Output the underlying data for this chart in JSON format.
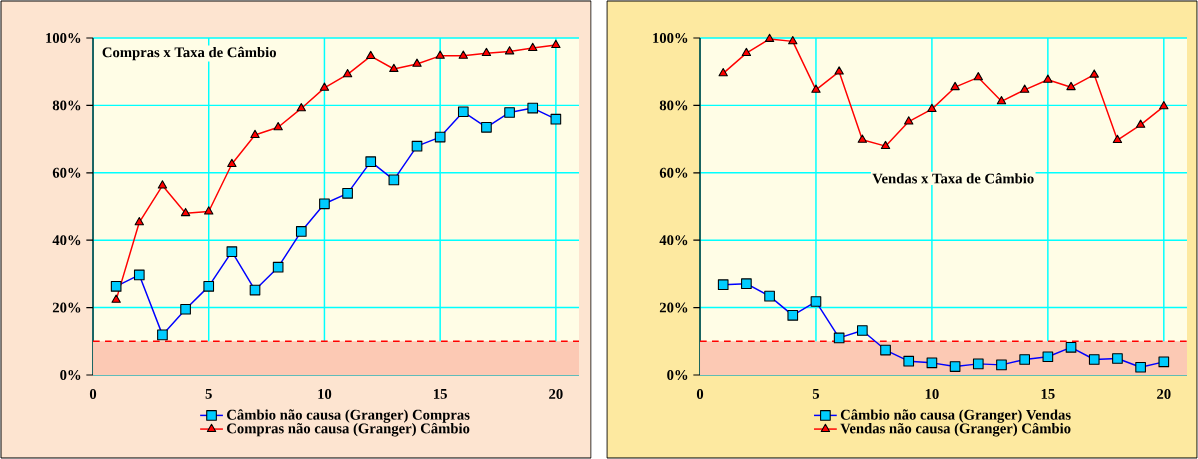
{
  "chart_data": [
    {
      "type": "line",
      "title": "Compras x Taxa de Câmbio",
      "x": [
        1,
        2,
        3,
        4,
        5,
        6,
        7,
        8,
        9,
        10,
        11,
        12,
        13,
        14,
        15,
        16,
        17,
        18,
        19,
        20
      ],
      "series": [
        {
          "name": "Câmbio não causa (Granger) Compras",
          "color": "#0000ff",
          "marker": "square",
          "values": [
            26.3,
            29.7,
            11.9,
            19.5,
            26.3,
            36.6,
            25.2,
            32.0,
            42.6,
            50.8,
            53.9,
            63.3,
            57.9,
            67.9,
            70.6,
            78.1,
            73.5,
            77.9,
            79.2,
            75.9
          ]
        },
        {
          "name": "Compras não causa (Granger) Câmbio",
          "color": "#ff0000",
          "marker": "triangle",
          "values": [
            22.3,
            45.3,
            56.2,
            48.0,
            48.5,
            62.6,
            71.2,
            73.5,
            79.1,
            85.2,
            89.2,
            94.6,
            90.8,
            92.3,
            94.7,
            94.7,
            95.5,
            96.0,
            97.0,
            97.9
          ]
        }
      ],
      "xlim": [
        0,
        21
      ],
      "xticks": [
        0,
        5,
        10,
        15,
        20
      ],
      "ylim": [
        0,
        100
      ],
      "yticks": [
        {
          "value": 0,
          "label": "0%"
        },
        {
          "value": 20,
          "label": "20%"
        },
        {
          "value": 40,
          "label": "40%"
        },
        {
          "value": 60,
          "label": "60%"
        },
        {
          "value": 80,
          "label": "80%"
        },
        {
          "value": 100,
          "label": "100%"
        }
      ],
      "grid": true,
      "legend": "bottom",
      "ref_lines": [
        {
          "axis": "y",
          "value": 10,
          "color": "#ff0000",
          "line_style": "dashed"
        }
      ],
      "bands": [
        {
          "axis": "y",
          "from": 0,
          "to": 10,
          "color": "#fcc9b4"
        }
      ]
    },
    {
      "type": "line",
      "title": "Vendas x Taxa de Câmbio",
      "x": [
        1,
        2,
        3,
        4,
        5,
        6,
        7,
        8,
        9,
        10,
        11,
        12,
        13,
        14,
        15,
        16,
        17,
        18,
        19,
        20
      ],
      "series": [
        {
          "name": "Câmbio não causa (Granger) Vendas",
          "color": "#0000ff",
          "marker": "square",
          "values": [
            26.8,
            27.1,
            23.4,
            17.7,
            21.8,
            11.0,
            13.2,
            7.4,
            4.1,
            3.6,
            2.5,
            3.3,
            3.0,
            4.6,
            5.4,
            8.2,
            4.6,
            4.9,
            2.3,
            3.9
          ]
        },
        {
          "name": "Vendas não causa (Granger) Câmbio",
          "color": "#ff0000",
          "marker": "triangle",
          "values": [
            89.5,
            95.5,
            99.7,
            99.0,
            84.6,
            90.0,
            69.8,
            67.9,
            75.2,
            78.9,
            85.4,
            88.3,
            81.2,
            84.6,
            87.6,
            85.4,
            89.1,
            69.7,
            74.2,
            79.7
          ]
        }
      ],
      "xlim": [
        0,
        21
      ],
      "xticks": [
        0,
        5,
        10,
        15,
        20
      ],
      "ylim": [
        0,
        100
      ],
      "yticks": [
        {
          "value": 0,
          "label": "0%"
        },
        {
          "value": 20,
          "label": "20%"
        },
        {
          "value": 40,
          "label": "40%"
        },
        {
          "value": 60,
          "label": "60%"
        },
        {
          "value": 80,
          "label": "80%"
        },
        {
          "value": 100,
          "label": "100%"
        }
      ],
      "grid": true,
      "legend": "bottom",
      "ref_lines": [
        {
          "axis": "y",
          "value": 10,
          "color": "#ff0000",
          "line_style": "dashed"
        }
      ],
      "bands": [
        {
          "axis": "y",
          "from": 0,
          "to": 10,
          "color": "#fcc9b4"
        }
      ]
    }
  ]
}
